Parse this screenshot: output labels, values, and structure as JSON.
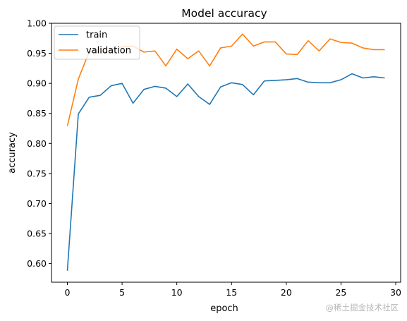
{
  "chart_data": {
    "type": "line",
    "title": "Model accuracy",
    "xlabel": "epoch",
    "ylabel": "accuracy",
    "xlim": [
      -1.45,
      30.45
    ],
    "ylim": [
      0.569,
      1.0
    ],
    "xticks": [
      0,
      5,
      10,
      15,
      20,
      25,
      30
    ],
    "yticks": [
      0.6,
      0.65,
      0.7,
      0.75,
      0.8,
      0.85,
      0.9,
      0.95,
      1.0
    ],
    "xtick_labels": [
      "0",
      "5",
      "10",
      "15",
      "20",
      "25",
      "30"
    ],
    "ytick_labels": [
      "0.60",
      "0.65",
      "0.70",
      "0.75",
      "0.80",
      "0.85",
      "0.90",
      "0.95",
      "1.00"
    ],
    "grid": false,
    "legend_position": "top-left",
    "x": [
      0,
      1,
      2,
      3,
      4,
      5,
      6,
      7,
      8,
      9,
      10,
      11,
      12,
      13,
      14,
      15,
      16,
      17,
      18,
      19,
      20,
      21,
      22,
      23,
      24,
      25,
      26,
      27,
      28,
      29
    ],
    "series": [
      {
        "name": "train",
        "color": "#1f77b4",
        "values": [
          0.588,
          0.849,
          0.877,
          0.88,
          0.896,
          0.9,
          0.867,
          0.89,
          0.895,
          0.892,
          0.878,
          0.899,
          0.878,
          0.865,
          0.894,
          0.901,
          0.898,
          0.881,
          0.904,
          0.905,
          0.906,
          0.908,
          0.902,
          0.901,
          0.901,
          0.906,
          0.916,
          0.909,
          0.911,
          0.909
        ]
      },
      {
        "name": "validation",
        "color": "#ff7f0e",
        "values": [
          0.829,
          0.907,
          0.953,
          0.951,
          0.954,
          0.961,
          0.962,
          0.952,
          0.954,
          0.929,
          0.957,
          0.941,
          0.954,
          0.929,
          0.959,
          0.962,
          0.982,
          0.962,
          0.969,
          0.969,
          0.949,
          0.948,
          0.971,
          0.954,
          0.974,
          0.968,
          0.967,
          0.959,
          0.956,
          0.956
        ]
      }
    ]
  },
  "watermark": {
    "text": "@稀土掘金技术社区"
  }
}
